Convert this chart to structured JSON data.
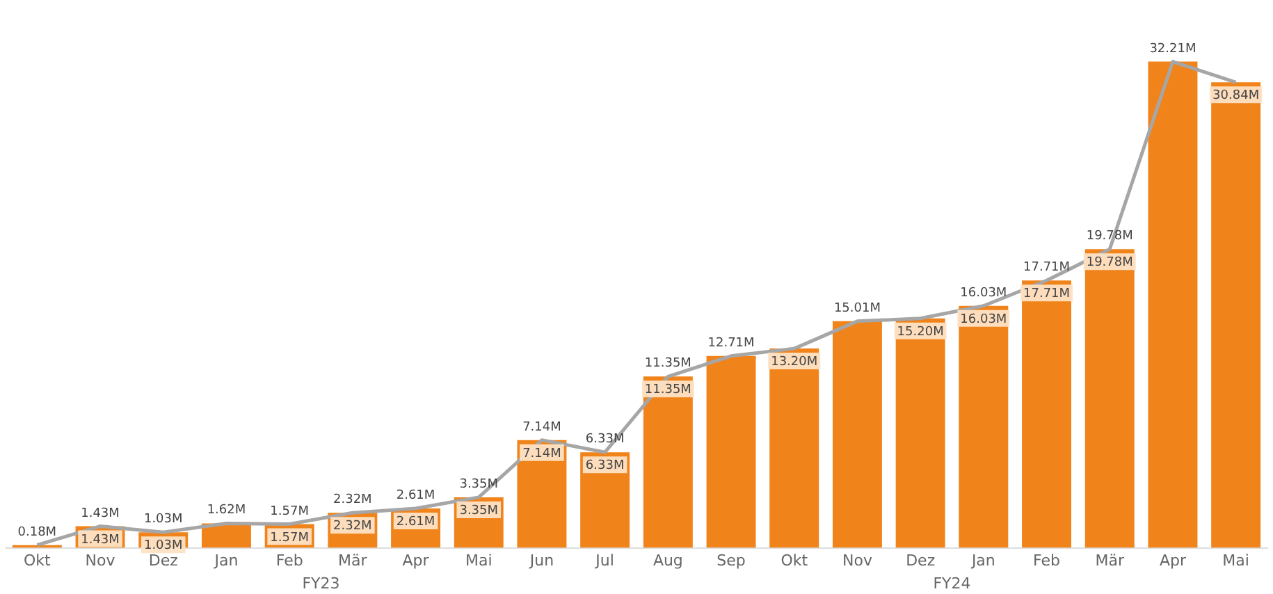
{
  "chart_data": {
    "type": "bar",
    "categories": [
      "Okt",
      "Nov",
      "Dez",
      "Jan",
      "Feb",
      "Mär",
      "Apr",
      "Mai",
      "Jun",
      "Jul",
      "Aug",
      "Sep",
      "Okt",
      "Nov",
      "Dez",
      "Jan",
      "Feb",
      "Mär",
      "Apr",
      "Mai"
    ],
    "series": [
      {
        "color": "#f0831a",
        "values": [
          0.18,
          1.43,
          1.03,
          1.62,
          1.57,
          2.32,
          2.61,
          3.35,
          7.14,
          6.33,
          11.35,
          12.71,
          13.2,
          15.01,
          15.2,
          16.03,
          17.71,
          19.78,
          32.21,
          30.84
        ],
        "value_labels": [
          null,
          "1.43M",
          "1.03M",
          null,
          "1.57M",
          "2.32M",
          "2.61M",
          "3.35M",
          "7.14M",
          "6.33M",
          "11.35M",
          null,
          "13.20M",
          null,
          "15.20M",
          "16.03M",
          "17.71M",
          "19.78M",
          null,
          "30.84M"
        ]
      },
      {
        "type": "line",
        "color": "#a6a6a6",
        "values": [
          0.18,
          1.43,
          1.03,
          1.62,
          1.57,
          2.32,
          2.61,
          3.35,
          7.14,
          6.33,
          11.35,
          12.71,
          13.2,
          15.01,
          15.2,
          16.03,
          17.71,
          19.78,
          32.21,
          30.84
        ],
        "value_labels": [
          "0.18M",
          "1.43M",
          "1.03M",
          "1.62M",
          "1.57M",
          "2.32M",
          "2.61M",
          "3.35M",
          "7.14M",
          "6.33M",
          "11.35M",
          "12.71M",
          null,
          "15.01M",
          null,
          "16.03M",
          "17.71M",
          "19.78M",
          "32.21M",
          null
        ]
      }
    ],
    "annotations": [
      "FY23",
      "FY24"
    ],
    "grid": false,
    "legend": false,
    "marker": "none",
    "line_style": "solid"
  }
}
